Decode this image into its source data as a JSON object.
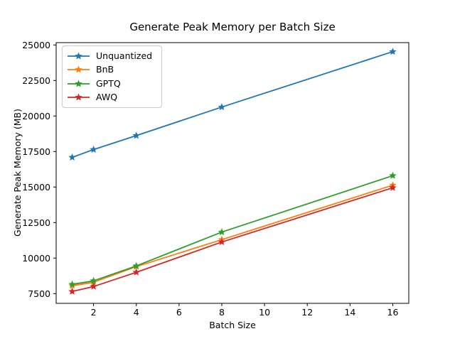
{
  "chart_data": {
    "type": "line",
    "title": "Generate Peak Memory per Batch Size",
    "xlabel": "Batch Size",
    "ylabel": "Generate Peak Memory (MB)",
    "x": [
      1,
      2,
      4,
      8,
      16
    ],
    "series": [
      {
        "name": "Unquantized",
        "color": "#1f77b4",
        "values": [
          17090,
          17640,
          18620,
          20630,
          24530
        ]
      },
      {
        "name": "BnB",
        "color": "#ff7f0e",
        "values": [
          8050,
          8300,
          9400,
          11300,
          15130
        ]
      },
      {
        "name": "GPTQ",
        "color": "#2ca02c",
        "values": [
          8150,
          8400,
          9450,
          11830,
          15800
        ]
      },
      {
        "name": "AWQ",
        "color": "#d62728",
        "values": [
          7650,
          8000,
          9000,
          11130,
          14950
        ]
      }
    ],
    "marker": "star",
    "xticks": [
      2,
      4,
      6,
      8,
      10,
      12,
      14,
      16
    ],
    "yticks": [
      7500,
      10000,
      12500,
      15000,
      17500,
      20000,
      22500,
      25000
    ],
    "xlim": [
      0.25,
      16.75
    ],
    "ylim": [
      6815,
      25165
    ],
    "grid": false,
    "legend_position": "upper-left",
    "axis_color": "#000000",
    "background_color": "#ffffff"
  }
}
